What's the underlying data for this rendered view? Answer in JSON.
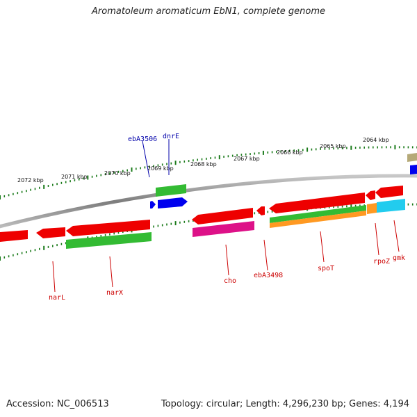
{
  "title": "Aromatoleum aromaticum EbN1, complete genome",
  "footer": {
    "accession": "Accession: NC_006513",
    "topology": "Topology: circular; Length: 4,296,230 bp; Genes: 4,194"
  },
  "colors": {
    "backbone": "#8a8a8a",
    "ticks": "#1a7a1a",
    "label_forward": "#0000aa",
    "label_reverse": "#cc0000"
  },
  "scale_labels": [
    "2072 kbp",
    "2071 kbp",
    "2070 kbp",
    "2069 kbp",
    "2068 kbp",
    "2067 kbp",
    "2066 kbp",
    "2065 kbp",
    "2064 kbp"
  ],
  "gene_labels": [
    {
      "id": "ebA3506",
      "text": "ebA3506",
      "strand": "forward"
    },
    {
      "id": "dnrE",
      "text": "dnrE",
      "strand": "forward"
    },
    {
      "id": "narL",
      "text": "narL",
      "strand": "reverse"
    },
    {
      "id": "narX",
      "text": "narX",
      "strand": "reverse"
    },
    {
      "id": "cho",
      "text": "cho",
      "strand": "reverse"
    },
    {
      "id": "ebA3498",
      "text": "ebA3498",
      "strand": "reverse"
    },
    {
      "id": "spoT",
      "text": "spoT",
      "strand": "reverse"
    },
    {
      "id": "rpoZ",
      "text": "rpoZ",
      "strand": "reverse"
    },
    {
      "id": "gmk",
      "text": "gmk",
      "strand": "reverse"
    }
  ]
}
